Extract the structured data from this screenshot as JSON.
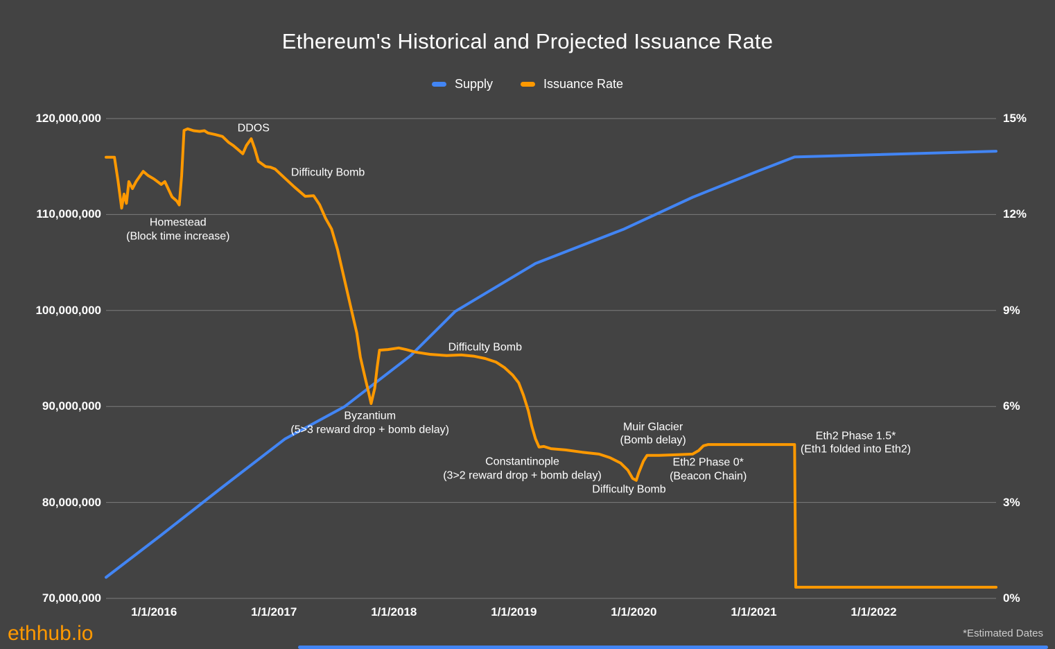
{
  "title": "Ethereum's Historical and Projected Issuance Rate",
  "legend": [
    {
      "label": "Supply",
      "color": "#4285f4"
    },
    {
      "label": "Issuance Rate",
      "color": "#ff9900"
    }
  ],
  "footer": {
    "brand": "ethhub.io",
    "note": "*Estimated Dates"
  },
  "colors": {
    "background": "#434343",
    "grid": "#7d7d7d",
    "text": "#ffffff",
    "supply": "#4285f4",
    "issuance": "#ff9900",
    "note_text": "#cccccc",
    "scrollbar": "#4285f4"
  },
  "chart_data": {
    "type": "line",
    "title": "Ethereum's Historical and Projected Issuance Rate",
    "grid": true,
    "legend_position": "top-center",
    "x_axis": {
      "min": 2015.6,
      "max": 2023.02,
      "ticks": [
        {
          "t": 2016,
          "label": "1/1/2016"
        },
        {
          "t": 2017,
          "label": "1/1/2017"
        },
        {
          "t": 2018,
          "label": "1/1/2018"
        },
        {
          "t": 2019,
          "label": "1/1/2019"
        },
        {
          "t": 2020,
          "label": "1/1/2020"
        },
        {
          "t": 2021,
          "label": "1/1/2021"
        },
        {
          "t": 2022,
          "label": "1/1/2022"
        }
      ]
    },
    "left_axis": {
      "min": 70000000,
      "max": 120000000,
      "ticks": [
        {
          "value": 120000000,
          "label": "120,000,000"
        },
        {
          "value": 110000000,
          "label": "110,000,000"
        },
        {
          "value": 100000000,
          "label": "100,000,000"
        },
        {
          "value": 90000000,
          "label": "90,000,000"
        },
        {
          "value": 80000000,
          "label": "80,000,000"
        },
        {
          "value": 70000000,
          "label": "70,000,000"
        }
      ]
    },
    "right_axis": {
      "min": 0,
      "max": 15,
      "ticks": [
        {
          "value": 15,
          "label": "15%"
        },
        {
          "value": 12,
          "label": "12%"
        },
        {
          "value": 9,
          "label": "9%"
        },
        {
          "value": 6,
          "label": "6%"
        },
        {
          "value": 3,
          "label": "3%"
        },
        {
          "value": 0,
          "label": "0%"
        }
      ]
    },
    "series": [
      {
        "name": "Supply",
        "axis": "left",
        "color": "#4285f4",
        "points": [
          [
            2015.6,
            72200000
          ],
          [
            2016.05,
            76500000
          ],
          [
            2016.57,
            81600000
          ],
          [
            2017.09,
            86600000
          ],
          [
            2017.59,
            90000000
          ],
          [
            2018.14,
            95300000
          ],
          [
            2018.51,
            99900000
          ],
          [
            2019.18,
            104900000
          ],
          [
            2019.92,
            108500000
          ],
          [
            2020.49,
            111800000
          ],
          [
            2021.01,
            114400000
          ],
          [
            2021.34,
            116000000
          ],
          [
            2023.02,
            116600000
          ]
        ]
      },
      {
        "name": "Issuance Rate",
        "axis": "right",
        "color": "#ff9900",
        "points": [
          [
            2015.6,
            13.79
          ],
          [
            2015.67,
            13.79
          ],
          [
            2015.7,
            13.05
          ],
          [
            2015.73,
            12.2
          ],
          [
            2015.75,
            12.64
          ],
          [
            2015.77,
            12.35
          ],
          [
            2015.79,
            13.03
          ],
          [
            2015.82,
            12.81
          ],
          [
            2015.85,
            13.03
          ],
          [
            2015.91,
            13.35
          ],
          [
            2015.95,
            13.22
          ],
          [
            2016.0,
            13.11
          ],
          [
            2016.06,
            12.94
          ],
          [
            2016.09,
            13.03
          ],
          [
            2016.15,
            12.55
          ],
          [
            2016.19,
            12.42
          ],
          [
            2016.21,
            12.3
          ],
          [
            2016.23,
            13.2
          ],
          [
            2016.25,
            14.63
          ],
          [
            2016.28,
            14.68
          ],
          [
            2016.33,
            14.62
          ],
          [
            2016.38,
            14.6
          ],
          [
            2016.42,
            14.62
          ],
          [
            2016.45,
            14.55
          ],
          [
            2016.51,
            14.5
          ],
          [
            2016.57,
            14.44
          ],
          [
            2016.62,
            14.26
          ],
          [
            2016.66,
            14.16
          ],
          [
            2016.7,
            14.03
          ],
          [
            2016.74,
            13.9
          ],
          [
            2016.77,
            14.16
          ],
          [
            2016.81,
            14.37
          ],
          [
            2016.84,
            14.05
          ],
          [
            2016.87,
            13.66
          ],
          [
            2016.93,
            13.5
          ],
          [
            2016.97,
            13.48
          ],
          [
            2017.01,
            13.42
          ],
          [
            2017.09,
            13.14
          ],
          [
            2017.17,
            12.86
          ],
          [
            2017.26,
            12.57
          ],
          [
            2017.33,
            12.59
          ],
          [
            2017.38,
            12.31
          ],
          [
            2017.43,
            11.88
          ],
          [
            2017.48,
            11.55
          ],
          [
            2017.53,
            10.9
          ],
          [
            2017.57,
            10.25
          ],
          [
            2017.61,
            9.6
          ],
          [
            2017.65,
            8.95
          ],
          [
            2017.69,
            8.3
          ],
          [
            2017.72,
            7.54
          ],
          [
            2017.76,
            6.89
          ],
          [
            2017.79,
            6.42
          ],
          [
            2017.81,
            6.09
          ],
          [
            2017.84,
            6.57
          ],
          [
            2017.86,
            7.22
          ],
          [
            2017.88,
            7.76
          ],
          [
            2017.95,
            7.78
          ],
          [
            2018.04,
            7.83
          ],
          [
            2018.1,
            7.78
          ],
          [
            2018.18,
            7.7
          ],
          [
            2018.3,
            7.63
          ],
          [
            2018.44,
            7.59
          ],
          [
            2018.56,
            7.61
          ],
          [
            2018.67,
            7.57
          ],
          [
            2018.76,
            7.5
          ],
          [
            2018.85,
            7.39
          ],
          [
            2018.92,
            7.22
          ],
          [
            2018.99,
            6.98
          ],
          [
            2019.04,
            6.74
          ],
          [
            2019.08,
            6.35
          ],
          [
            2019.12,
            5.87
          ],
          [
            2019.15,
            5.38
          ],
          [
            2019.18,
            4.99
          ],
          [
            2019.21,
            4.73
          ],
          [
            2019.25,
            4.75
          ],
          [
            2019.31,
            4.68
          ],
          [
            2019.43,
            4.64
          ],
          [
            2019.57,
            4.57
          ],
          [
            2019.71,
            4.51
          ],
          [
            2019.8,
            4.4
          ],
          [
            2019.89,
            4.23
          ],
          [
            2019.95,
            4.01
          ],
          [
            2019.99,
            3.75
          ],
          [
            2020.02,
            3.69
          ],
          [
            2020.04,
            3.92
          ],
          [
            2020.08,
            4.29
          ],
          [
            2020.11,
            4.47
          ],
          [
            2020.21,
            4.47
          ],
          [
            2020.35,
            4.49
          ],
          [
            2020.49,
            4.51
          ],
          [
            2020.54,
            4.62
          ],
          [
            2020.58,
            4.77
          ],
          [
            2020.62,
            4.81
          ],
          [
            2021.34,
            4.81
          ],
          [
            2021.35,
            0.35
          ],
          [
            2023.02,
            0.35
          ]
        ]
      }
    ],
    "annotations": [
      {
        "lines": [
          "Homestead",
          "(Block time increase)"
        ],
        "t": 2016.2,
        "pct": 11.53
      },
      {
        "lines": [
          "DDOS"
        ],
        "t": 2016.83,
        "pct": 14.7
      },
      {
        "lines": [
          "Difficulty Bomb"
        ],
        "t": 2017.45,
        "pct": 13.31
      },
      {
        "lines": [
          "Byzantium",
          "(5>3 reward drop + bomb delay)"
        ],
        "t": 2017.8,
        "pct": 5.48
      },
      {
        "lines": [
          "Difficulty Bomb"
        ],
        "t": 2018.76,
        "pct": 7.85
      },
      {
        "lines": [
          "Constantinople",
          "(3>2 reward drop + bomb delay)"
        ],
        "t": 2019.07,
        "pct": 4.05
      },
      {
        "lines": [
          "Muir Glacier",
          "(Bomb delay)"
        ],
        "t": 2020.16,
        "pct": 5.14
      },
      {
        "lines": [
          "Difficulty Bomb"
        ],
        "t": 2019.96,
        "pct": 3.4
      },
      {
        "lines": [
          "Eth2 Phase 0*",
          "(Beacon Chain)"
        ],
        "t": 2020.62,
        "pct": 4.03
      },
      {
        "lines": [
          "Eth2 Phase 1.5*",
          "(Eth1 folded into Eth2)"
        ],
        "t": 2021.85,
        "pct": 4.86
      }
    ]
  }
}
